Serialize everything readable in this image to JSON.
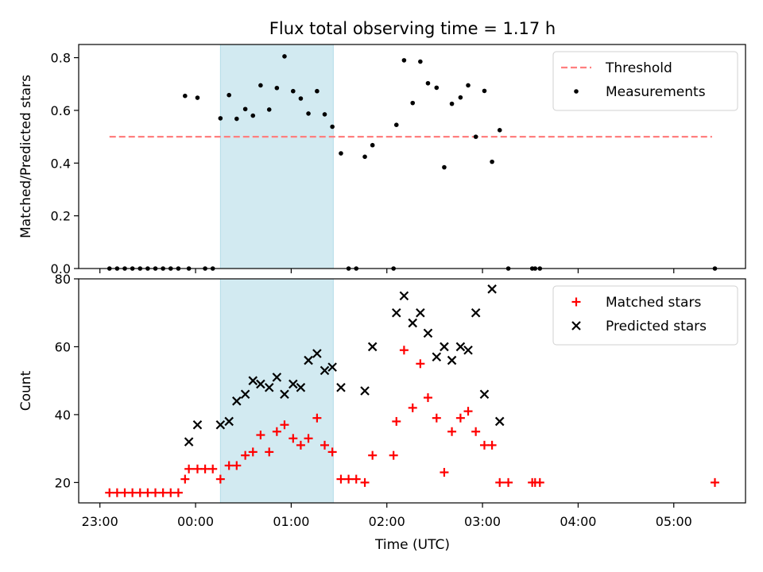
{
  "chart_data": {
    "type": "scatter",
    "title": "Flux total observing time = 1.17 h",
    "x_axis": {
      "label": "Time (UTC)",
      "tick_hours": [
        -1,
        0,
        1,
        2,
        3,
        4,
        5
      ],
      "tick_labels": [
        "23:00",
        "00:00",
        "01:00",
        "02:00",
        "03:00",
        "04:00",
        "05:00"
      ],
      "range_hours": [
        -1.222,
        5.75
      ]
    },
    "shaded_interval_hours": [
      0.26,
      1.44
    ],
    "shade_color": "#add8e6",
    "panels": [
      {
        "ylabel": "Matched/Predicted stars",
        "ylim": [
          0,
          0.85
        ],
        "yticks": [
          0,
          0.2,
          0.4,
          0.6,
          0.8
        ],
        "ytick_labels": [
          "0.0",
          "0.2",
          "0.4",
          "0.6",
          "0.8"
        ],
        "legend": {
          "placement": "top-right"
        },
        "series": [
          {
            "name": "Threshold",
            "type": "line",
            "style": "dashed",
            "color": "#ff7f7f",
            "x": [
              -0.9,
              5.4
            ],
            "y": [
              0.5,
              0.5
            ]
          },
          {
            "name": "Measurements",
            "type": "scatter",
            "marker": "dot",
            "color": "#000000",
            "x": [
              -0.9,
              -0.82,
              -0.74,
              -0.66,
              -0.58,
              -0.5,
              -0.42,
              -0.34,
              -0.26,
              -0.18,
              -0.11,
              -0.07,
              0.02,
              0.1,
              0.18,
              0.26,
              0.35,
              0.43,
              0.52,
              0.6,
              0.68,
              0.77,
              0.85,
              0.93,
              1.02,
              1.1,
              1.18,
              1.27,
              1.35,
              1.43,
              1.52,
              1.6,
              1.68,
              1.77,
              1.85,
              2.07,
              2.1,
              2.18,
              2.27,
              2.35,
              2.43,
              2.52,
              2.6,
              2.68,
              2.77,
              2.85,
              2.93,
              3.02,
              3.1,
              3.18,
              3.27,
              3.52,
              3.55,
              3.6,
              5.43
            ],
            "y": [
              0,
              0,
              0,
              0,
              0,
              0,
              0,
              0,
              0,
              0,
              0.655,
              0,
              0.648,
              0,
              0,
              0.57,
              0.658,
              0.568,
              0.605,
              0.58,
              0.695,
              0.603,
              0.685,
              0.805,
              0.673,
              0.645,
              0.588,
              0.673,
              0.585,
              0.538,
              0.437,
              0,
              0,
              0.424,
              0.468,
              0,
              0.545,
              0.79,
              0.628,
              0.785,
              0.703,
              0.686,
              0.384,
              0.625,
              0.649,
              0.695,
              0.5,
              0.674,
              0.405,
              0.525,
              0,
              0,
              0,
              0,
              0
            ]
          }
        ]
      },
      {
        "ylabel": "Count",
        "ylim": [
          14,
          80
        ],
        "yticks": [
          20,
          40,
          60,
          80
        ],
        "ytick_labels": [
          "20",
          "40",
          "60",
          "80"
        ],
        "legend": {
          "placement": "top-right"
        },
        "series": [
          {
            "name": "Matched stars",
            "type": "scatter",
            "marker": "plus",
            "color": "#ff0000",
            "x": [
              -0.9,
              -0.82,
              -0.74,
              -0.66,
              -0.58,
              -0.5,
              -0.42,
              -0.34,
              -0.26,
              -0.18,
              -0.11,
              -0.07,
              0.02,
              0.1,
              0.18,
              0.26,
              0.35,
              0.43,
              0.52,
              0.6,
              0.68,
              0.77,
              0.85,
              0.93,
              1.02,
              1.1,
              1.18,
              1.27,
              1.35,
              1.43,
              1.52,
              1.6,
              1.68,
              1.77,
              1.85,
              2.07,
              2.1,
              2.18,
              2.27,
              2.35,
              2.43,
              2.52,
              2.6,
              2.68,
              2.77,
              2.85,
              2.93,
              3.02,
              3.1,
              3.18,
              3.27,
              3.52,
              3.55,
              3.6,
              5.43
            ],
            "y": [
              17,
              17,
              17,
              17,
              17,
              17,
              17,
              17,
              17,
              17,
              21,
              24,
              24,
              24,
              24,
              21,
              25,
              25,
              28,
              29,
              34,
              29,
              35,
              37,
              33,
              31,
              33,
              39,
              31,
              29,
              21,
              21,
              21,
              20,
              28,
              28,
              38,
              59,
              42,
              55,
              45,
              39,
              23,
              35,
              39,
              41,
              35,
              31,
              31,
              20,
              20,
              20,
              20,
              20,
              20
            ]
          },
          {
            "name": "Predicted stars",
            "type": "scatter",
            "marker": "x",
            "color": "#000000",
            "x": [
              -0.07,
              0.02,
              0.26,
              0.35,
              0.43,
              0.52,
              0.6,
              0.68,
              0.77,
              0.85,
              0.93,
              1.02,
              1.1,
              1.18,
              1.27,
              1.35,
              1.43,
              1.52,
              1.77,
              1.85,
              2.1,
              2.18,
              2.27,
              2.35,
              2.43,
              2.52,
              2.6,
              2.68,
              2.77,
              2.85,
              2.93,
              3.02,
              3.1,
              3.18
            ],
            "y": [
              32,
              37,
              37,
              38,
              44,
              46,
              50,
              49,
              48,
              51,
              46,
              49,
              48,
              56,
              58,
              53,
              54,
              48,
              47,
              60,
              70,
              75,
              67,
              70,
              64,
              57,
              60,
              56,
              60,
              59,
              70,
              46,
              77,
              38
            ]
          }
        ]
      }
    ]
  }
}
